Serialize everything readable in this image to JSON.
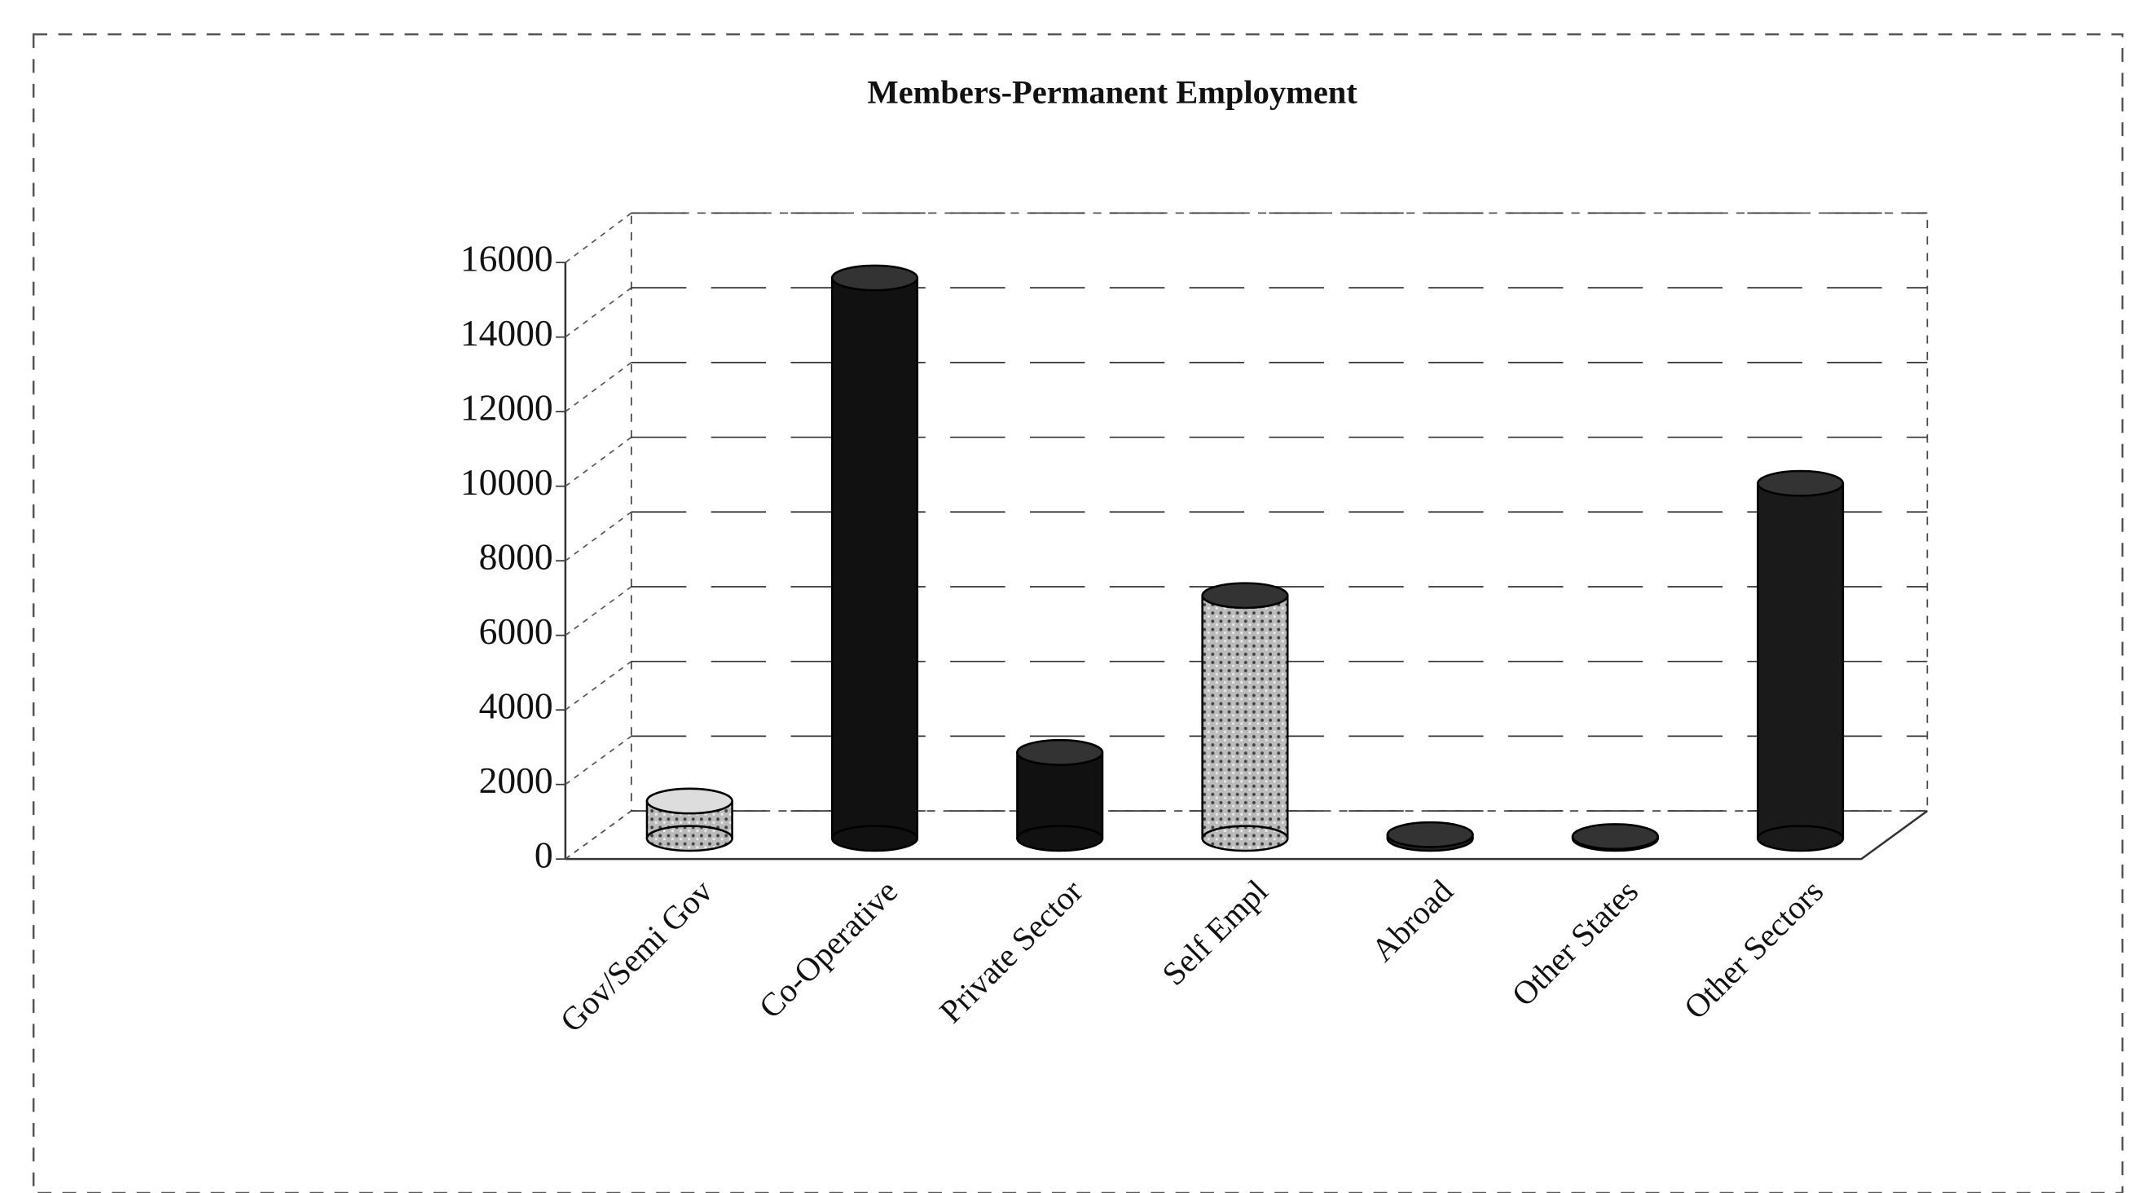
{
  "chart_data": {
    "type": "bar",
    "title": "Members-Permanent Employment",
    "categories": [
      "Gov/Semi Gov",
      "Co-Operative",
      "Private Sector",
      "Self Empl",
      "Abroad",
      "Other States",
      "Other Sectors"
    ],
    "values": [
      1000,
      15000,
      2300,
      6500,
      100,
      50,
      9500
    ],
    "colors": [
      "#c8c8c8",
      "#111111",
      "#111111",
      "#8a8a8a",
      "#222222",
      "#222222",
      "#1a1a1a"
    ],
    "ylim": [
      0,
      16000
    ],
    "yticks": [
      0,
      2000,
      4000,
      6000,
      8000,
      10000,
      12000,
      14000,
      16000
    ],
    "grid": true
  }
}
